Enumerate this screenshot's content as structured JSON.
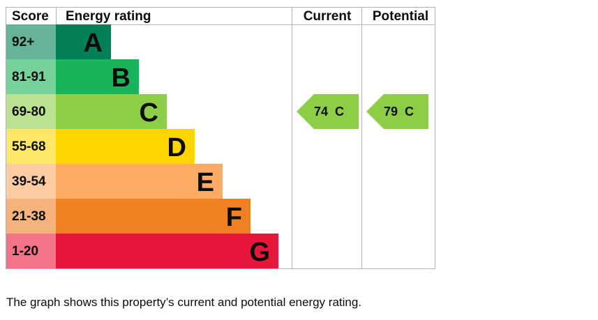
{
  "chart_data": {
    "type": "bar",
    "headers": {
      "score": "Score",
      "rating": "Energy rating",
      "current": "Current",
      "potential": "Potential"
    },
    "bands": [
      {
        "score": "92+",
        "letter": "A",
        "color": "#008054",
        "score_color": "#66b398"
      },
      {
        "score": "81-91",
        "letter": "B",
        "color": "#19b459",
        "score_color": "#75d29b"
      },
      {
        "score": "69-80",
        "letter": "C",
        "color": "#8dce46",
        "score_color": "#bbe290"
      },
      {
        "score": "55-68",
        "letter": "D",
        "color": "#ffd500",
        "score_color": "#ffe666"
      },
      {
        "score": "39-54",
        "letter": "E",
        "color": "#fcaa65",
        "score_color": "#fdcca3"
      },
      {
        "score": "21-38",
        "letter": "F",
        "color": "#ef8023",
        "score_color": "#f5b37b"
      },
      {
        "score": "1-20",
        "letter": "G",
        "color": "#e9153b",
        "score_color": "#f27389"
      }
    ],
    "current": {
      "value": 74,
      "letter": "C",
      "label": "74  C",
      "color": "#8dce46"
    },
    "potential": {
      "value": 79,
      "letter": "C",
      "label": "79  C",
      "color": "#8dce46"
    }
  },
  "caption": "The graph shows this property’s current and potential energy rating."
}
